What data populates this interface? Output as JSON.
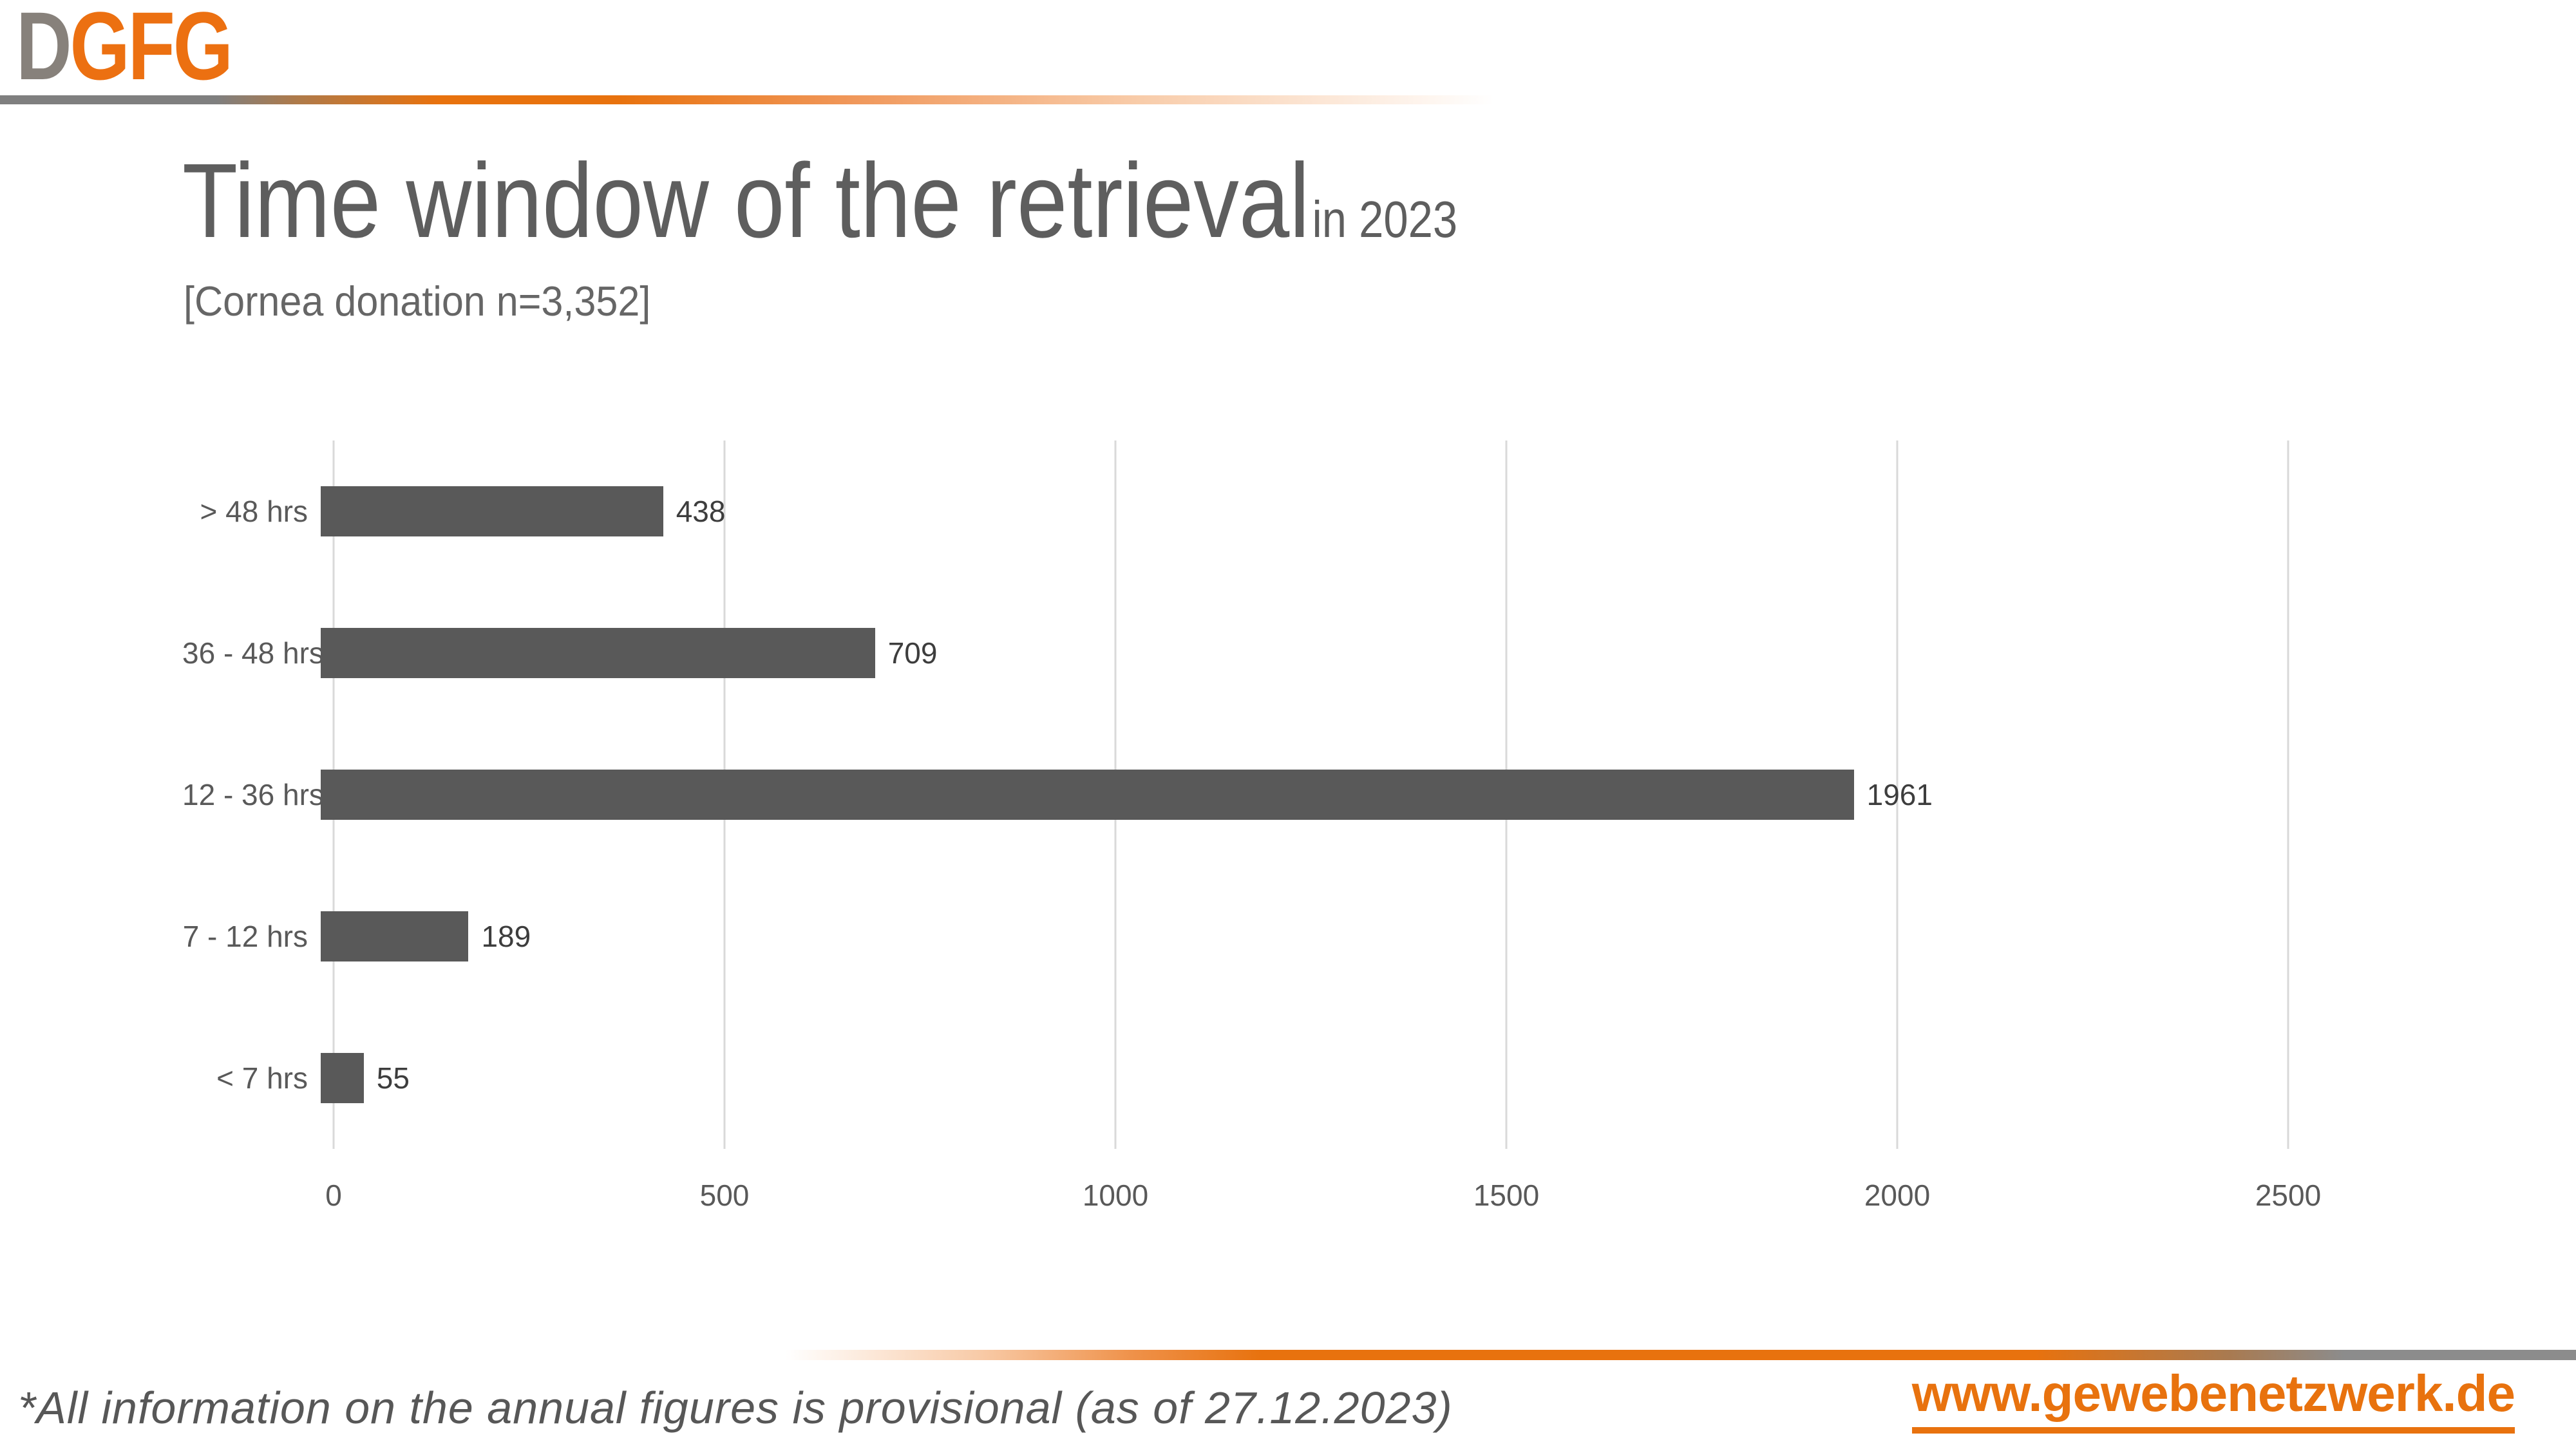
{
  "logo": {
    "part1": "D",
    "part2": "GFG"
  },
  "header": {
    "title": "Time window of the retrieval",
    "title_suffix": "in 2023",
    "subtitle": "[Cornea donation n=3,352]"
  },
  "chart_data": {
    "type": "bar",
    "orientation": "horizontal",
    "title": "Time window of the retrieval in 2023",
    "subtitle": "Cornea donation n=3,352",
    "categories": [
      "> 48 hrs",
      "36 - 48 hrs",
      "12 - 36 hrs",
      "7 - 12 hrs",
      "< 7 hrs"
    ],
    "values": [
      438,
      709,
      1961,
      189,
      55
    ],
    "x_ticks": [
      0,
      500,
      1000,
      1500,
      2000,
      2500
    ],
    "xlim": [
      0,
      2500
    ],
    "xlabel": "",
    "ylabel": "",
    "grid": true,
    "data_labels": true,
    "legend": "none",
    "bar_color": "#595959",
    "gridline_color": "#d9d9d9"
  },
  "footer": {
    "note": "*All information on the annual figures is provisional (as of 27.12.2023)",
    "website": "www.gewebenetzwerk.de"
  },
  "colors": {
    "accent_orange": "#e8720e",
    "logo_gray": "#87817b",
    "title_gray": "#5e5e5e",
    "text_gray": "#595959",
    "value_label_gray": "#3d3d3d",
    "rule_gray": "#7f7f7f"
  }
}
